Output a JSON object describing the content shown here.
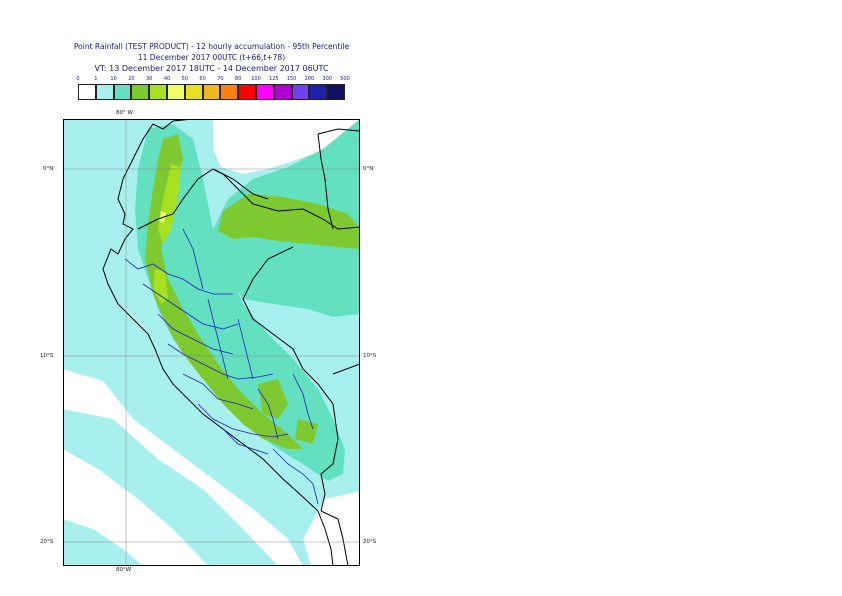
{
  "title": {
    "line1": "Point Rainfall (TEST PRODUCT) - 12 hourly accumulation - 95th Percentile",
    "line2": "11 December 2017 00UTC (t+66,t+78)",
    "line3": "VT: 13 December 2017 18UTC - 14 December 2017 06UTC"
  },
  "legend": {
    "thresholds": [
      "0",
      "1",
      "10",
      "20",
      "30",
      "40",
      "50",
      "60",
      "70",
      "80",
      "100",
      "125",
      "150",
      "200",
      "300",
      "500"
    ],
    "colors": [
      "#ffffff",
      "#a8f0ee",
      "#62e0c0",
      "#7ec830",
      "#a6e020",
      "#eeff66",
      "#e8e020",
      "#f0b820",
      "#ff8010",
      "#ff0000",
      "#ff00ff",
      "#b000d8",
      "#7040f0",
      "#2020b0",
      "#101060",
      "#080830"
    ]
  },
  "map": {
    "top_lon_label": "80° W",
    "bottom_lon_label": "80°W",
    "left_lat_labels": [
      "0°N",
      "10°S",
      "20°S"
    ],
    "right_lat_labels": [
      "0°N",
      "10°S",
      "20°S"
    ]
  }
}
